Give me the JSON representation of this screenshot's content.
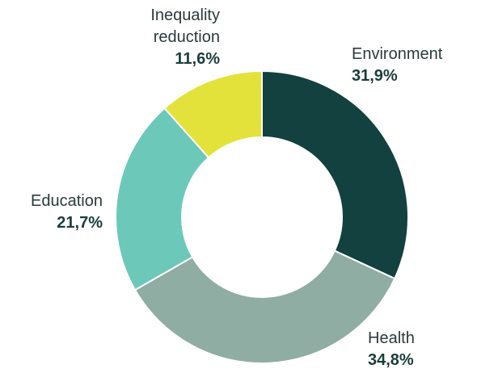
{
  "chart_data": {
    "type": "donut",
    "categories": [
      "Environment",
      "Health",
      "Education",
      "Inequality reduction"
    ],
    "values": [
      31.9,
      34.8,
      21.7,
      11.6
    ],
    "value_labels": [
      "31,9%",
      "34,8%",
      "21,7%",
      "11,6%"
    ],
    "colors": [
      "#12413f",
      "#8fada2",
      "#6cc9b9",
      "#e3e23a"
    ]
  }
}
